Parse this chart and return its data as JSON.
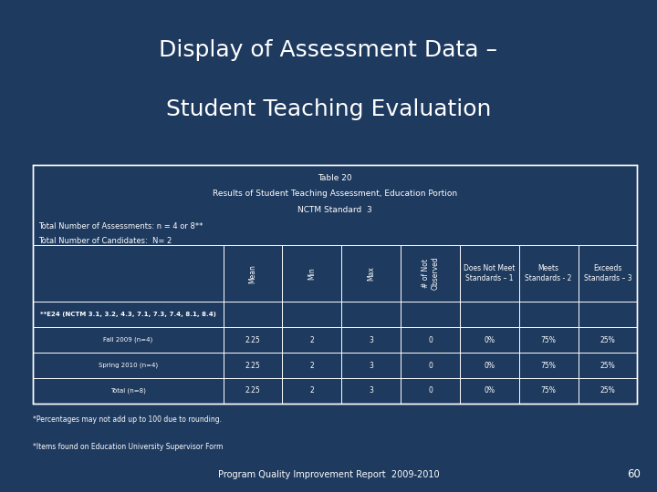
{
  "title_line1": "Display of Assessment Data –",
  "title_line2": "Student Teaching Evaluation",
  "background_color": "#1e3a5f",
  "table_header_line1": "Table 20",
  "table_header_line2": "Results of Student Teaching Assessment, Education Portion",
  "table_header_line3": "NCTM Standard  3",
  "total_assessments": "Total Number of Assessments: n = 4 or 8**",
  "total_candidates": "Total Number of Candidates:  N= 2",
  "col_headers": [
    "Mean",
    "Min",
    "Max",
    "# of Not\nObserved",
    "Does Not Meet\nStandards – 1",
    "Meets\nStandards - 2",
    "Exceeds\nStandards – 3"
  ],
  "row_labels": [
    "**E24 (NCTM 3.1, 3.2, 4.3, 7.1, 7.3, 7.4, 8.1, 8.4)",
    "Fall 2009 (n=4)",
    "Spring 2010 (n=4)",
    "Total (n=8)"
  ],
  "row_data": [
    [
      "",
      "",
      "",
      "",
      "",
      "",
      ""
    ],
    [
      "2.25",
      "2",
      "3",
      "0",
      "0%",
      "75%",
      "25%"
    ],
    [
      "2.25",
      "2",
      "3",
      "0",
      "0%",
      "75%",
      "25%"
    ],
    [
      "2.25",
      "2",
      "3",
      "0",
      "0%",
      "75%",
      "25%"
    ]
  ],
  "footnote1": "*Percentages may not add up to 100 due to rounding.",
  "footnote2": "*Items found on Education University Supervisor Form",
  "footer": "Program Quality Improvement Report  2009-2010",
  "page_number": "60",
  "text_color": "#ffffff",
  "table_border_color": "#ffffff",
  "table_bg_color": "#1e3a5f",
  "title_fontsize": 18,
  "table_fontsize": 6.0,
  "header_fontsize": 6.5,
  "footer_fontsize": 7.0
}
